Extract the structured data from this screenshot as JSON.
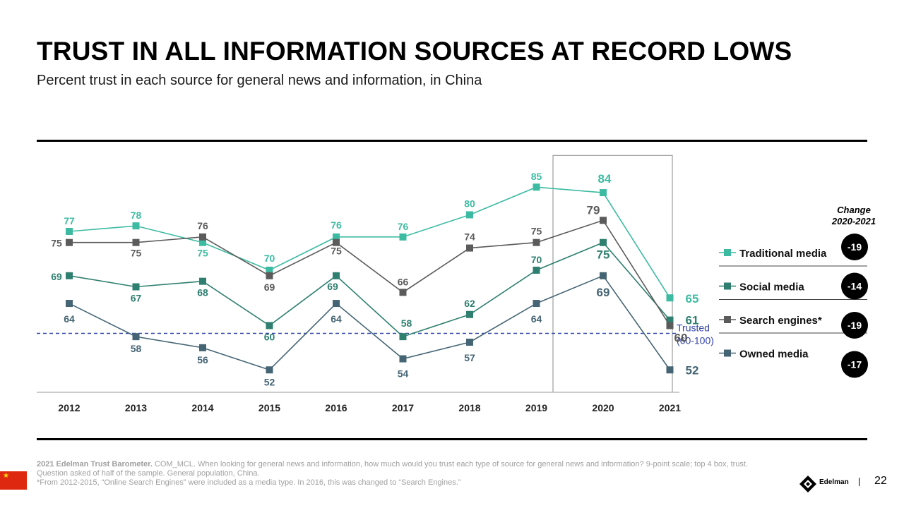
{
  "header": {
    "title": "TRUST IN ALL INFORMATION SOURCES AT RECORD LOWS",
    "subtitle": "Percent trust in each source for general news and information, in China"
  },
  "chart_data": {
    "type": "line",
    "title": "TRUST IN ALL INFORMATION SOURCES AT RECORD LOWS",
    "subtitle": "Percent trust in each source for general news and information, in China",
    "xlabel": "",
    "ylabel": "",
    "ylim": [
      48,
      92
    ],
    "grid": false,
    "categories": [
      "2012",
      "2013",
      "2014",
      "2015",
      "2016",
      "2017",
      "2018",
      "2019",
      "2020",
      "2021"
    ],
    "series": [
      {
        "name": "Traditional media",
        "color": "#3dbba2",
        "values": [
          77,
          78,
          75,
          70,
          76,
          76,
          80,
          85,
          84,
          65
        ],
        "change": "-19"
      },
      {
        "name": "Social media",
        "color": "#2e7f6f",
        "values": [
          69,
          67,
          68,
          60,
          69,
          58,
          62,
          70,
          75,
          61
        ],
        "change": "-14"
      },
      {
        "name": "Search engines*",
        "color": "#5b5b5b",
        "values": [
          75,
          75,
          76,
          69,
          75,
          66,
          74,
          75,
          79,
          60
        ],
        "change": "-19"
      },
      {
        "name": "Owned media",
        "color": "#456574",
        "values": [
          64,
          58,
          56,
          52,
          64,
          54,
          57,
          64,
          69,
          52
        ],
        "change": "-17"
      }
    ],
    "reference_line": {
      "value": 60,
      "label": "Trusted",
      "sublabel": "(60-100)",
      "color": "#3344aa"
    },
    "highlight_category": "2020",
    "change_header": "Change\n2020-2021",
    "legend_position": "right"
  },
  "change_panel": {
    "header_line1": "Change",
    "header_line2": "2020-2021"
  },
  "footer": {
    "source_bold": "2021 Edelman Trust Barometer.",
    "source_text": " COM_MCL. When looking for general news and information, how much would you trust each type of source for general news and information? 9-point scale; top 4 box, trust. Question asked of half of the sample. General population, China.",
    "footnote": "*From 2012-2015, “Online Search Engines” were included as a media type. In 2016, this was changed to “Search Engines.”",
    "brand": "Edelman",
    "page_number": "22"
  }
}
